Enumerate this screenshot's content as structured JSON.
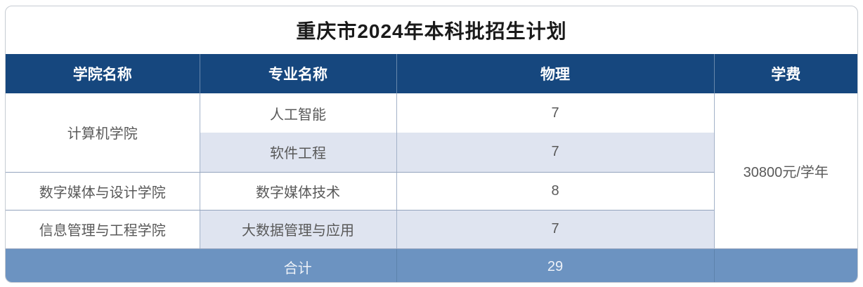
{
  "table": {
    "title": "重庆市2024年本科批招生计划",
    "columns": [
      "学院名称",
      "专业名称",
      "物理",
      "学费"
    ],
    "rows": [
      {
        "college": "计算机学院",
        "major": "人工智能",
        "physics": "7"
      },
      {
        "college": "计算机学院",
        "major": "软件工程",
        "physics": "7"
      },
      {
        "college": "数字媒体与设计学院",
        "major": "数字媒体技术",
        "physics": "8"
      },
      {
        "college": "信息管理与工程学院",
        "major": "大数据管理与应用",
        "physics": "7"
      }
    ],
    "tuition": "30800元/学年",
    "footer": {
      "label": "合计",
      "total": "29"
    }
  },
  "colors": {
    "header_bg": "#16477e",
    "footer_bg": "#6c93c1",
    "alt_row_bg": "#dfe4f0",
    "body_text": "#595959",
    "grid_line": "#93a3bd",
    "card_border": "#c6cbd2"
  }
}
